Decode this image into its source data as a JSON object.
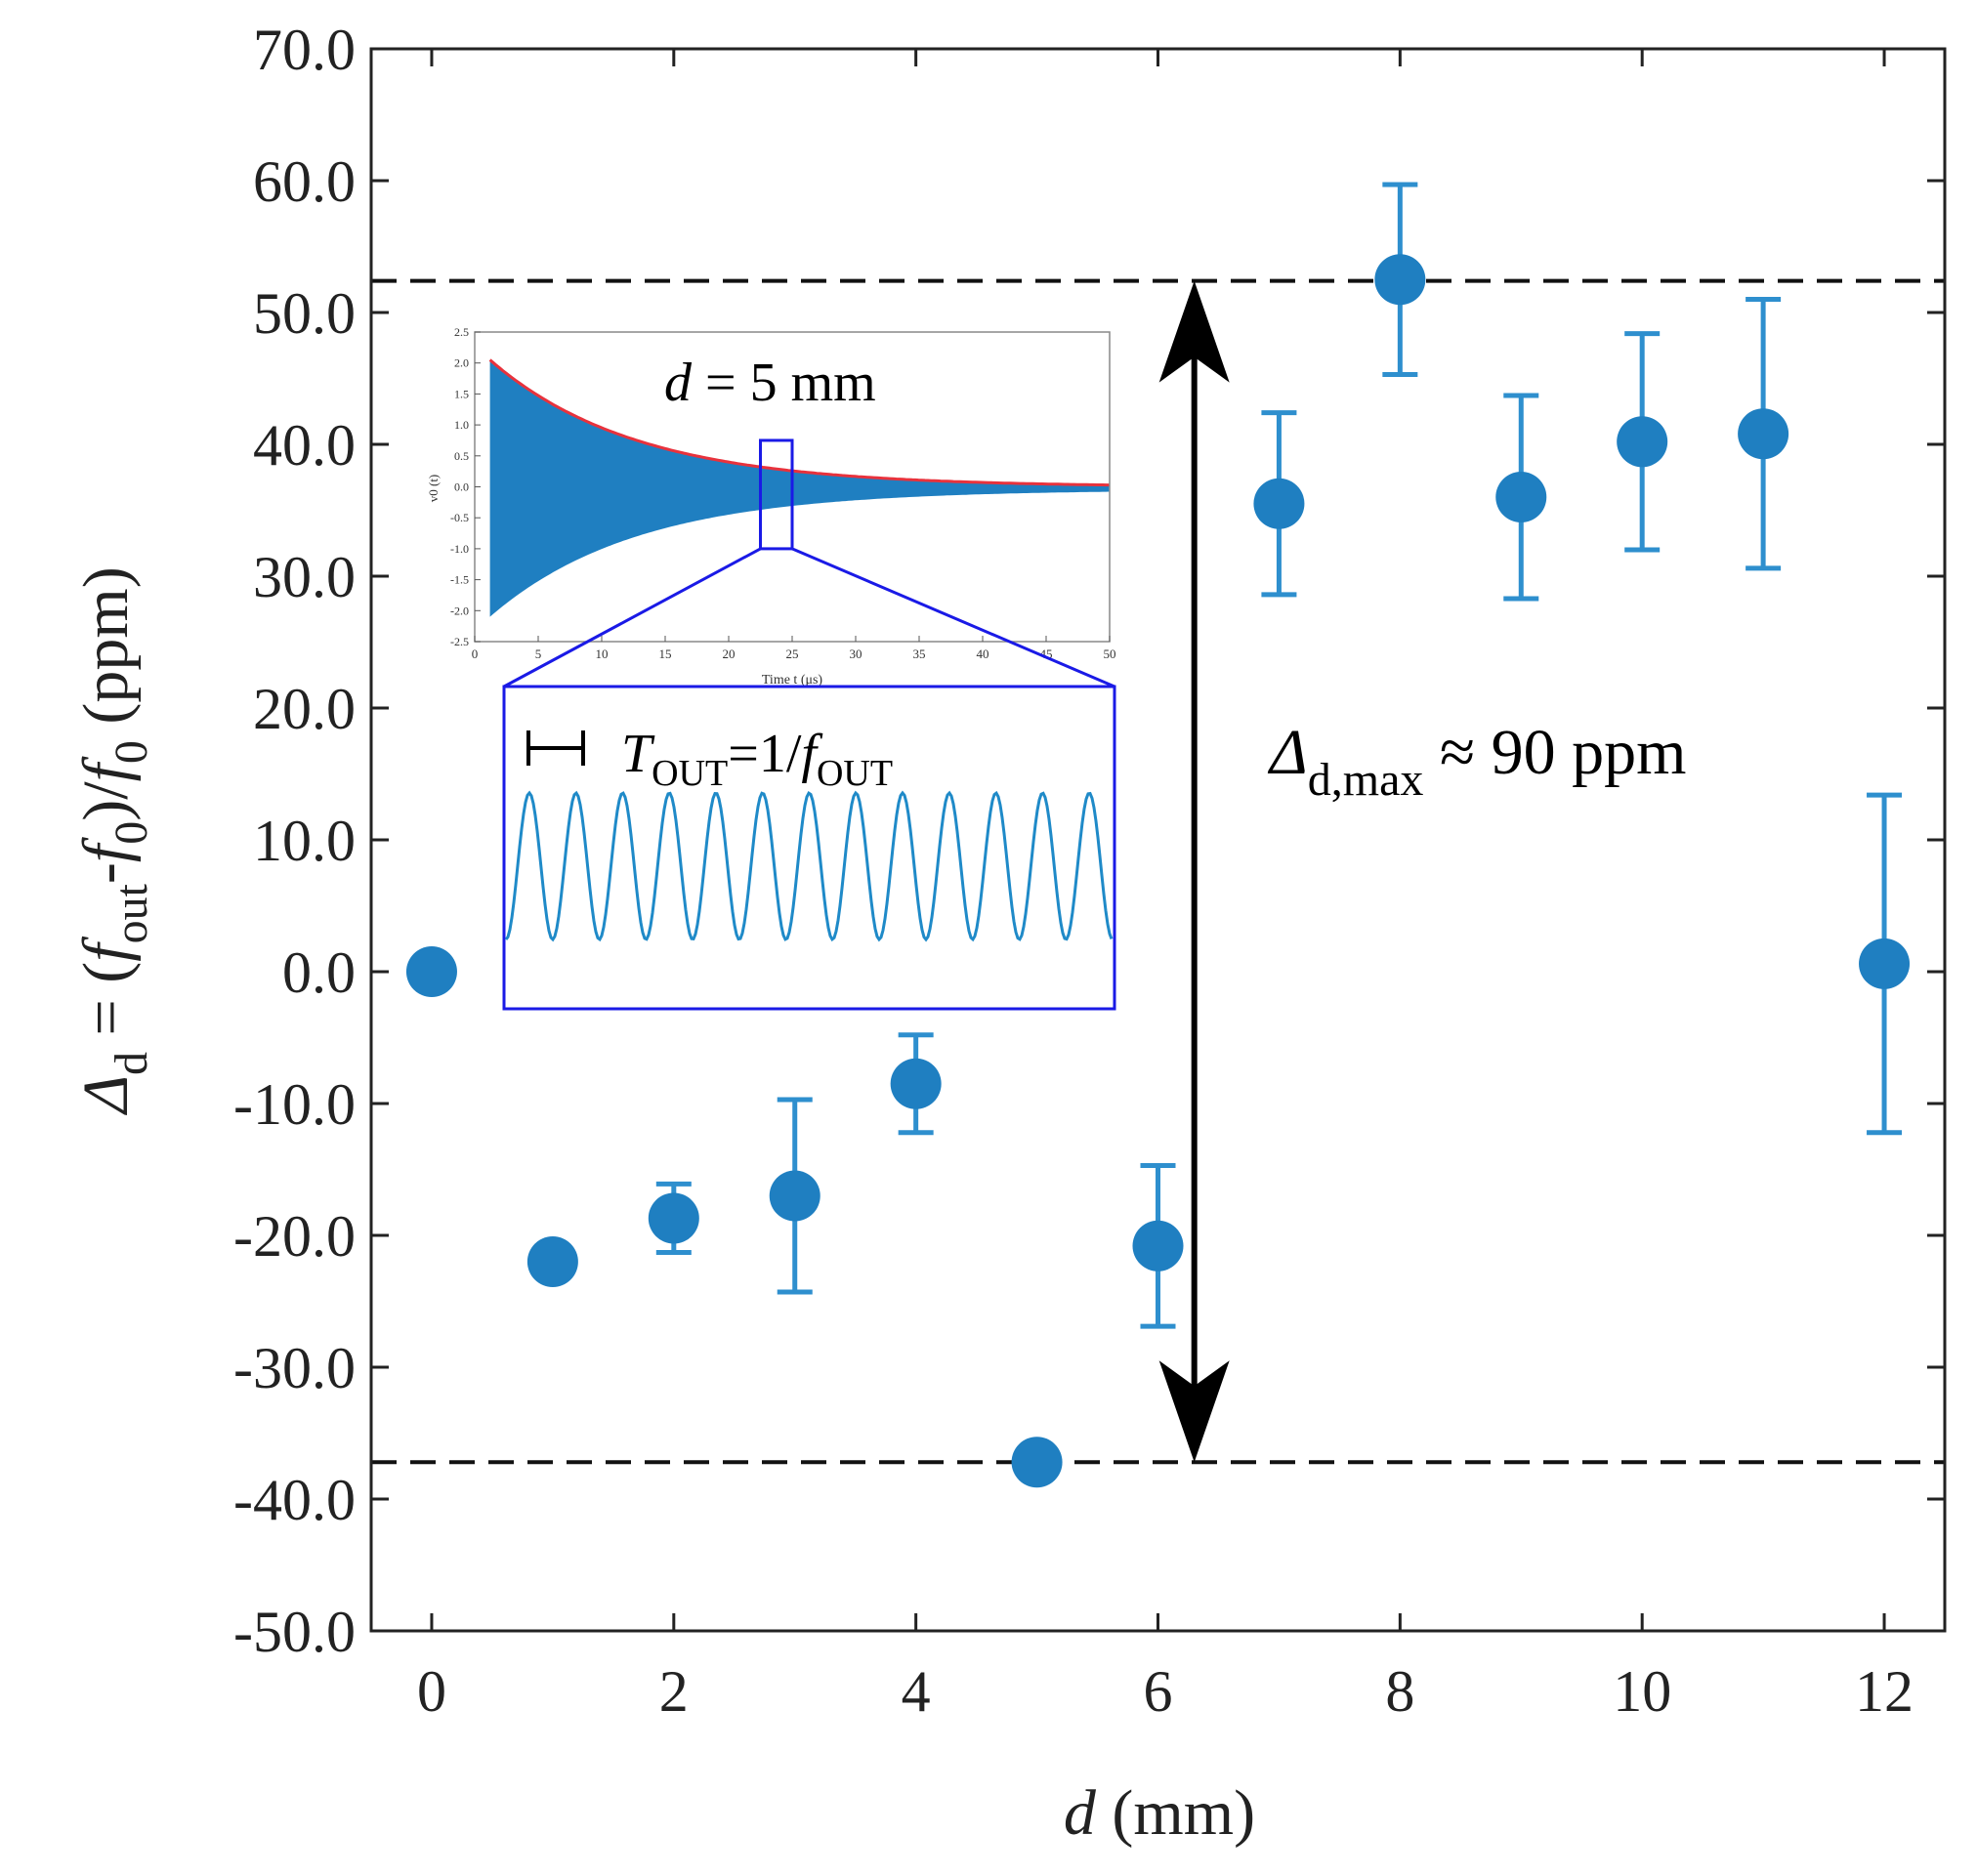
{
  "colors": {
    "marker": "#1f7fc1",
    "errorbar": "#2e8fce",
    "axis": "#222222",
    "refline": "#111111",
    "arrow": "#000000",
    "inset_signal": "#1f7fc1",
    "inset_envelope": "#e8323c",
    "inset_zoom": "#1a1ae6"
  },
  "chart_data": {
    "type": "scatter",
    "title": "",
    "xlabel": {
      "var": "d",
      "unit": " (mm)"
    },
    "ylabel": {
      "lhs": "Δ",
      "lhs_sub": "d",
      "eq": " = (",
      "f1": "f",
      "f1_sub": "out",
      "minus": "-",
      "f2": "f",
      "f2_sub": "0",
      "close": ")/",
      "f3": "f",
      "f3_sub": "0",
      "unit": " (ppm)"
    },
    "xlim": [
      -0.5,
      12.5
    ],
    "ylim": [
      -50,
      70
    ],
    "xticks": [
      0,
      2,
      4,
      6,
      8,
      10,
      12
    ],
    "xtick_labels": [
      "0",
      "2",
      "4",
      "6",
      "8",
      "10",
      "12"
    ],
    "yticks": [
      70,
      60,
      50,
      40,
      30,
      20,
      10,
      0,
      -10,
      -20,
      -30,
      -40,
      -50
    ],
    "ytick_labels": [
      "70.0",
      "60.0",
      "50.0",
      "40.0",
      "30.0",
      "20.0",
      "10.0",
      "0.0",
      "-10.0",
      "-20.0",
      "-30.0",
      "-40.0",
      "-50.0"
    ],
    "series": [
      {
        "name": "Δd",
        "x": [
          0,
          1,
          2,
          3,
          4,
          5,
          6,
          7,
          8,
          9,
          10,
          11,
          12
        ],
        "y": [
          0,
          -22,
          -18.7,
          -17,
          -8.5,
          -37.2,
          -20.8,
          35.5,
          52.5,
          36,
          40.2,
          40.8,
          0.6
        ],
        "yerr": [
          0,
          0,
          2.6,
          7.3,
          3.7,
          0,
          6.1,
          6.9,
          7.2,
          7.7,
          8.2,
          10.2,
          12.8
        ]
      }
    ],
    "reference_lines": [
      52.4,
      -37.2
    ],
    "range_arrow": {
      "x": 6.3,
      "from": -37.2,
      "to": 52.4
    },
    "annotation": {
      "sym": "Δ",
      "sub": "d,max",
      "text": " ≈ 90 ppm"
    },
    "inset": {
      "title": {
        "var": "d",
        "rest": " = 5 mm"
      },
      "xlabel": "Time t (μs)",
      "ylabel": "v0 (t)",
      "xlim": [
        0,
        50
      ],
      "ylim": [
        -2.5,
        2.5
      ],
      "xticks": [
        0,
        5,
        10,
        15,
        20,
        25,
        30,
        35,
        40,
        45,
        50
      ],
      "xtick_labels": [
        "0",
        "5",
        "10",
        "15",
        "20",
        "25",
        "30",
        "35",
        "40",
        "45",
        "50"
      ],
      "yticks": [
        2.5,
        2.0,
        1.5,
        1.0,
        0.5,
        0.0,
        -0.5,
        -1.0,
        -1.5,
        -2.0,
        -2.5
      ],
      "ytick_labels": [
        "2.5",
        "2.0",
        "1.5",
        "1.0",
        "0.5",
        "0.0",
        "-0.5",
        "-1.0",
        "-1.5",
        "-2.0",
        "-2.5"
      ],
      "signal_amplitude": 2.05,
      "signal_start": 1.2,
      "decay_tau": 11.5,
      "zoom_window": [
        22.5,
        25.0
      ],
      "zoom_label": {
        "T": "T",
        "T_sub": "OUT",
        "eq": "=1/",
        "f": "f",
        "f_sub": "OUT"
      },
      "zoom_cycles": 13
    }
  }
}
